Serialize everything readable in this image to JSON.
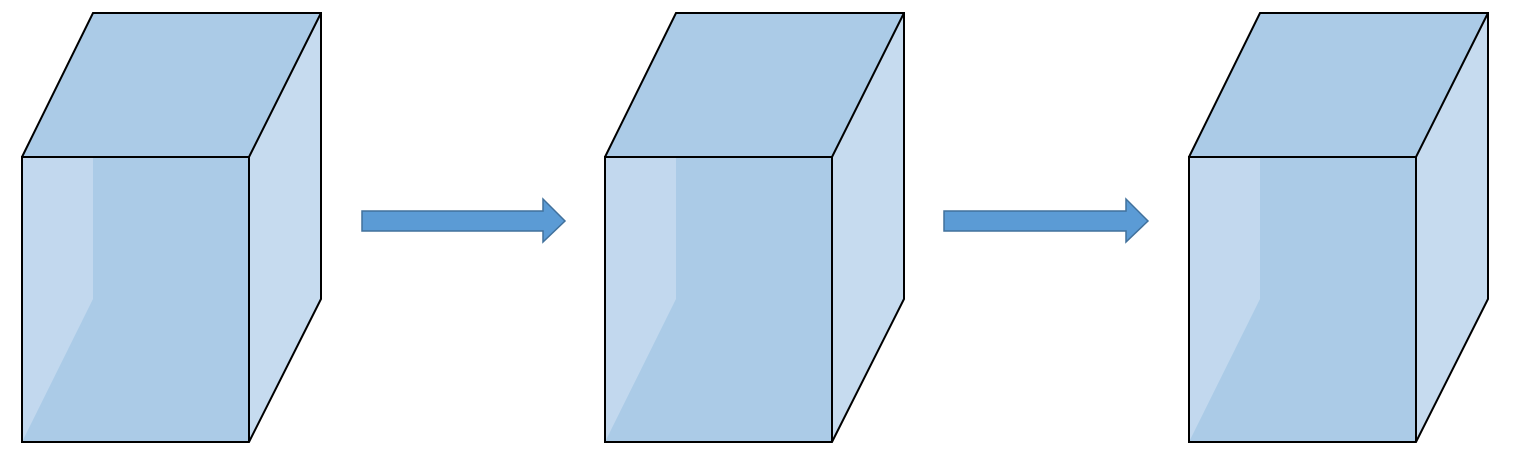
{
  "diagram": {
    "kind": "flow-of-3d-boxes",
    "background_color": "#ffffff",
    "box_count": 3,
    "arrow_count": 2,
    "colors": {
      "box_front": "#abcbe7",
      "box_side": "#c6dbef",
      "box_top": "#abcbe7",
      "box_back_glow": "#c2d9ee",
      "outline": "#000000",
      "arrow_fill": "#5b9bd5",
      "arrow_stroke": "#41719c"
    }
  }
}
